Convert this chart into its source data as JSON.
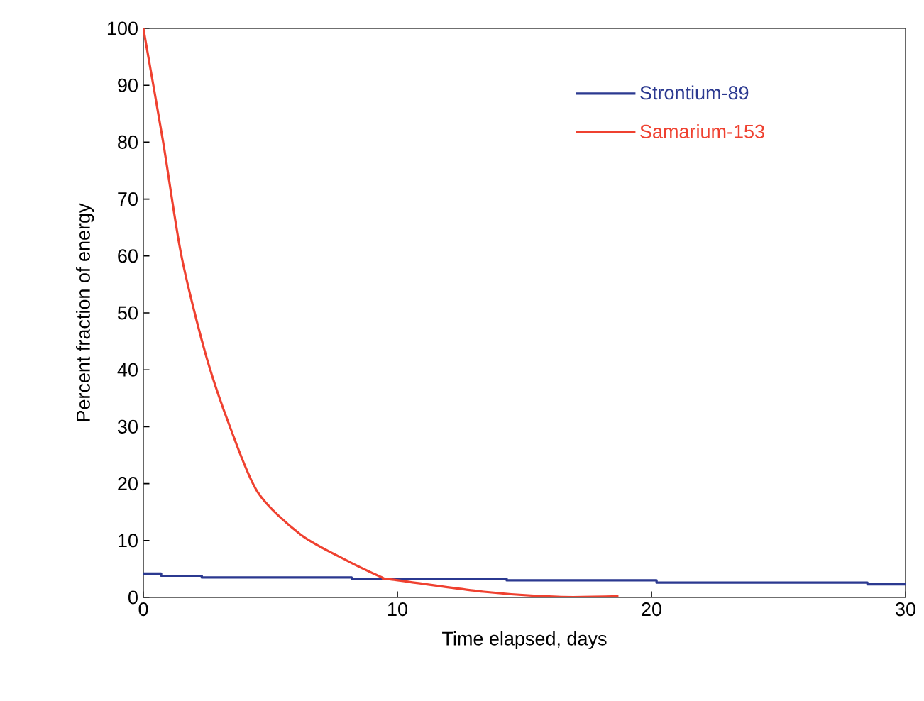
{
  "chart_data": {
    "type": "line",
    "xlabel": "Time elapsed, days",
    "ylabel": "Percent fraction of energy",
    "xlim": [
      0,
      30
    ],
    "ylim": [
      0,
      100
    ],
    "xticks": [
      0,
      10,
      20,
      30
    ],
    "yticks": [
      0,
      10,
      20,
      30,
      40,
      50,
      60,
      70,
      80,
      90,
      100
    ],
    "grid": false,
    "legend": "top right",
    "marker": "none",
    "line_style": "solid",
    "series": [
      {
        "name": "Strontium-89",
        "color": "#2b3990",
        "type": "step",
        "x": [
          0,
          0.7,
          2.3,
          8.2,
          14.3,
          20.2,
          28.5,
          30
        ],
        "values": [
          4.2,
          3.8,
          3.5,
          3.3,
          3.0,
          2.6,
          2.3,
          2.3
        ]
      },
      {
        "name": "Samarium-153",
        "color": "#ef4130",
        "x": [
          0,
          0.78,
          1.5,
          2.46,
          3.39,
          4.5,
          6.2,
          8.0,
          9.4,
          9.7,
          13.4,
          16.3,
          18.7
        ],
        "values": [
          100,
          80,
          60,
          42.6,
          30.2,
          18.5,
          11,
          6.5,
          3.5,
          3.2,
          1.0,
          0.1,
          0.2
        ]
      }
    ]
  }
}
